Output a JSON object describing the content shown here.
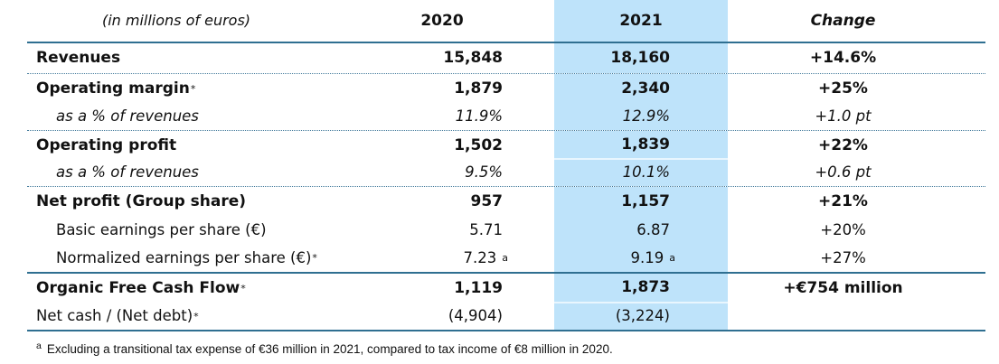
{
  "table": {
    "unit_label": "(in millions of euros)",
    "columns": {
      "year_2020": "2020",
      "year_2021": "2021",
      "change": "Change"
    },
    "rows": [
      {
        "label": "Revenues",
        "label_sup": "",
        "v2020": "15,848",
        "v2020_sup": "",
        "v2021": "18,160",
        "v2021_sup": "",
        "change": "+14.6%"
      },
      {
        "label": "Operating margin",
        "label_sup": "*",
        "v2020": "1,879",
        "v2020_sup": "",
        "v2021": "2,340",
        "v2021_sup": "",
        "change": "+25%"
      },
      {
        "label": "as a % of revenues",
        "label_sup": "",
        "v2020": "11.9%",
        "v2020_sup": "",
        "v2021": "12.9%",
        "v2021_sup": "",
        "change": "+1.0 pt"
      },
      {
        "label": "Operating profit",
        "label_sup": "",
        "v2020": "1,502",
        "v2020_sup": "",
        "v2021": "1,839",
        "v2021_sup": "",
        "change": "+22%"
      },
      {
        "label": "as a % of revenues",
        "label_sup": "",
        "v2020": "9.5%",
        "v2020_sup": "",
        "v2021": "10.1%",
        "v2021_sup": "",
        "change": "+0.6 pt"
      },
      {
        "label": "Net profit (Group share)",
        "label_sup": "",
        "v2020": "957",
        "v2020_sup": "",
        "v2021": "1,157",
        "v2021_sup": "",
        "change": "+21%"
      },
      {
        "label": "Basic earnings per share (€)",
        "label_sup": "",
        "v2020": "5.71",
        "v2020_sup": "",
        "v2021": "6.87",
        "v2021_sup": "",
        "change": "+20%"
      },
      {
        "label": "Normalized earnings per share (€)",
        "label_sup": "*",
        "v2020": "7.23",
        "v2020_sup": "a",
        "v2021": "9.19",
        "v2021_sup": "a",
        "change": "+27%"
      },
      {
        "label": "Organic Free Cash Flow",
        "label_sup": "*",
        "v2020": "1,119",
        "v2020_sup": "",
        "v2021": "1,873",
        "v2021_sup": "",
        "change": "+€754 million"
      },
      {
        "label": "Net cash / (Net debt)",
        "label_sup": "*",
        "v2020": "(4,904)",
        "v2020_sup": "",
        "v2021": "(3,224)",
        "v2021_sup": "",
        "change": ""
      }
    ],
    "footnote": {
      "marker": "a",
      "text": "Excluding a transitional tax expense of €36 million in 2021, compared to tax income of €8 million in 2020."
    }
  },
  "colors": {
    "accent_line": "#2f6f91",
    "highlight_column": "#bee3fa"
  }
}
